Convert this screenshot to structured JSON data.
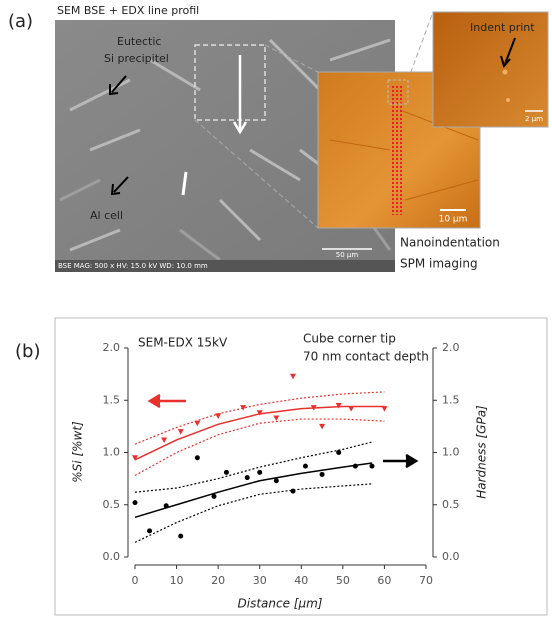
{
  "panel_a": {
    "label": "(a)",
    "title": "SEM BSE + EDX line profil",
    "annotations": [
      "Eutectic",
      "Si precipitel",
      "Al cell"
    ],
    "scale_bar": "50 µm",
    "info_bar": "BSE  MAG: 500 x  HV: 15.0 kV  WD: 10.0 mm",
    "afm_scale_bar": "10 µm",
    "inset_label": "Indent print",
    "inset_scale_bar": "2 µm",
    "caption": [
      "Nanoindentation",
      "SPM imaging"
    ]
  },
  "panel_b_label": "(b)",
  "chart_data": {
    "type": "scatter",
    "annotations": [
      "SEM-EDX 15kV",
      "Cube corner tip",
      "70 nm contact depth"
    ],
    "xlabel": "Distance [µm]",
    "ylabel": "%Si [%wt]",
    "y2label": "Hardness [GPa]",
    "xlim": [
      0,
      70
    ],
    "xticks": [
      0,
      10,
      20,
      30,
      40,
      50,
      60,
      70
    ],
    "ylim": [
      0,
      2
    ],
    "yticks": [
      {
        "value": 0,
        "label": "0.0"
      },
      0.5,
      {
        "value": 1,
        "label": "1.0"
      },
      1.5,
      {
        "value": 2,
        "label": "2.0"
      }
    ],
    "y2lim": [
      0,
      2
    ],
    "y2ticks": [
      {
        "value": 0,
        "label": "0.0"
      },
      0.5,
      {
        "value": 1,
        "label": "1.0"
      },
      1.5,
      {
        "value": 2,
        "label": "2.0"
      }
    ],
    "series": [
      {
        "color": "#e8312c",
        "marker": "triangle",
        "x": [
          0,
          7,
          11,
          15,
          20,
          26,
          30,
          34,
          38,
          43,
          45,
          49,
          52,
          60
        ],
        "values": [
          0.95,
          1.12,
          1.2,
          1.28,
          1.35,
          1.43,
          1.38,
          1.33,
          1.73,
          1.43,
          1.25,
          1.45,
          1.42,
          1.42
        ]
      },
      {
        "color": "#000000",
        "marker": "circle",
        "axis": "y2",
        "x": [
          0,
          3.5,
          7.5,
          11,
          15,
          19,
          22,
          27,
          30,
          34,
          38,
          41,
          45,
          49,
          53,
          57
        ],
        "values": [
          0.52,
          0.25,
          0.49,
          0.2,
          0.95,
          0.58,
          0.81,
          0.76,
          0.81,
          0.73,
          0.63,
          0.87,
          0.79,
          1.0,
          0.87,
          0.87
        ]
      },
      {
        "color": "#e8312c",
        "style": "solid",
        "x": [
          0,
          10,
          20,
          30,
          40,
          50,
          60
        ],
        "values": [
          0.93,
          1.12,
          1.27,
          1.37,
          1.42,
          1.44,
          1.44
        ]
      },
      {
        "color": "#e8312c",
        "style": "dotted",
        "x": [
          0,
          10,
          20,
          30,
          40,
          50,
          60
        ],
        "values": [
          1.08,
          1.24,
          1.37,
          1.46,
          1.52,
          1.56,
          1.58
        ]
      },
      {
        "color": "#e8312c",
        "style": "dotted",
        "x": [
          0,
          10,
          20,
          30,
          40,
          50,
          60
        ],
        "values": [
          0.78,
          1.0,
          1.17,
          1.28,
          1.32,
          1.32,
          1.3
        ]
      },
      {
        "color": "#000000",
        "style": "solid",
        "axis": "y2",
        "x": [
          0,
          10,
          20,
          30,
          40,
          50,
          57
        ],
        "values": [
          0.38,
          0.5,
          0.62,
          0.73,
          0.8,
          0.86,
          0.9
        ]
      },
      {
        "color": "#000000",
        "style": "dotted",
        "axis": "y2",
        "x": [
          0,
          10,
          20,
          30,
          40,
          50,
          57
        ],
        "values": [
          0.62,
          0.66,
          0.75,
          0.86,
          0.95,
          1.03,
          1.1
        ]
      },
      {
        "color": "#000000",
        "style": "dotted",
        "axis": "y2",
        "x": [
          0,
          10,
          20,
          30,
          40,
          50,
          57
        ],
        "values": [
          0.14,
          0.33,
          0.49,
          0.6,
          0.65,
          0.68,
          0.7
        ]
      }
    ]
  }
}
